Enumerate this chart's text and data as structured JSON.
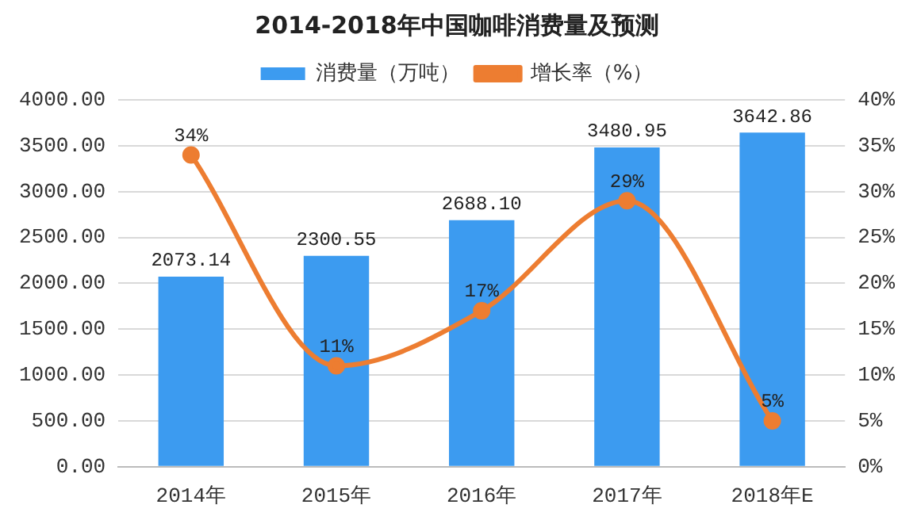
{
  "chart_data": {
    "type": "bar",
    "title": "2014-2018年中国咖啡消费量及预测",
    "categories": [
      "2014年",
      "2015年",
      "2016年",
      "2017年",
      "2018年E"
    ],
    "series": [
      {
        "name": "消费量（万吨）",
        "color": "#3c9bf0",
        "values": [
          2073.14,
          2300.55,
          2688.1,
          3480.95,
          3642.86
        ],
        "value_labels": [
          "2073.14",
          "2300.55",
          "2688.10",
          "3480.95",
          "3642.86"
        ]
      },
      {
        "name": "增长率（%）",
        "type": "line",
        "axis": "y2",
        "color": "#ed7d31",
        "values": [
          34,
          11,
          17,
          29,
          5
        ],
        "value_labels": [
          "34%",
          "11%",
          "17%",
          "29%",
          "5%"
        ],
        "marker": "circle"
      }
    ],
    "ylim": [
      0,
      4000
    ],
    "yticks": [
      {
        "value": 0,
        "label": "0.00"
      },
      {
        "value": 500,
        "label": "500.00"
      },
      {
        "value": 1000,
        "label": "1000.00"
      },
      {
        "value": 1500,
        "label": "1500.00"
      },
      {
        "value": 2000,
        "label": "2000.00"
      },
      {
        "value": 2500,
        "label": "2500.00"
      },
      {
        "value": 3000,
        "label": "3000.00"
      },
      {
        "value": 3500,
        "label": "3500.00"
      },
      {
        "value": 4000,
        "label": "4000.00"
      }
    ],
    "y2lim": [
      0,
      40
    ],
    "y2ticks": [
      {
        "value": 0,
        "label": "0%"
      },
      {
        "value": 5,
        "label": "5%"
      },
      {
        "value": 10,
        "label": "10%"
      },
      {
        "value": 15,
        "label": "15%"
      },
      {
        "value": 20,
        "label": "20%"
      },
      {
        "value": 25,
        "label": "25%"
      },
      {
        "value": 30,
        "label": "30%"
      },
      {
        "value": 35,
        "label": "35%"
      },
      {
        "value": 40,
        "label": "40%"
      }
    ],
    "grid": "y",
    "legend": "top"
  }
}
